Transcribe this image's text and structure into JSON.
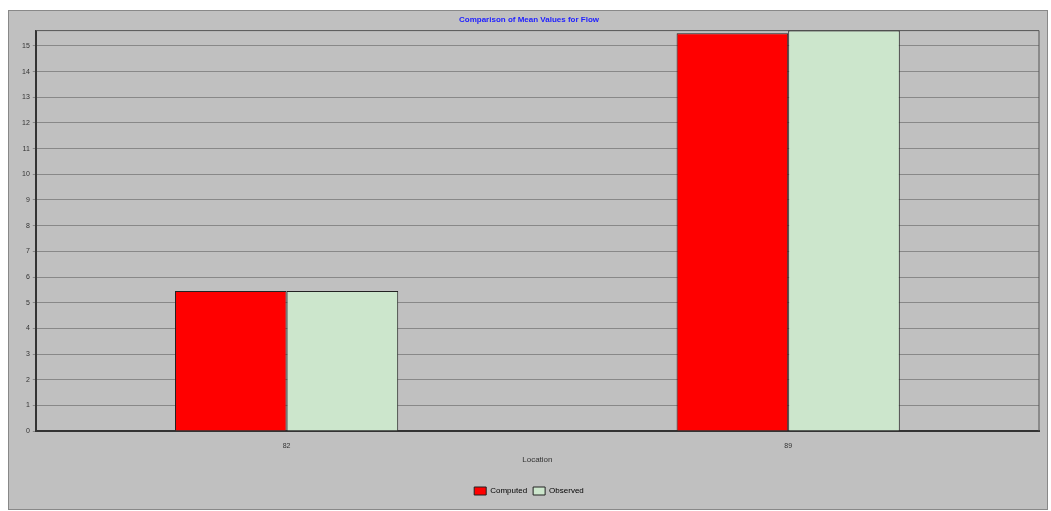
{
  "chart_data": {
    "type": "bar",
    "title": "Comparison of Mean Values for Flow",
    "xlabel": "Location",
    "categories": [
      "82",
      "89"
    ],
    "series": [
      {
        "name": "Computed",
        "color": "#ff0000",
        "values": [
          5.45,
          15.5
        ]
      },
      {
        "name": "Observed",
        "color": "#cce6cc",
        "values": [
          5.45,
          15.6
        ]
      }
    ],
    "ylim": [
      0,
      15.6
    ],
    "yticks": [
      0,
      1,
      2,
      3,
      4,
      5,
      6,
      7,
      8,
      9,
      10,
      11,
      12,
      13,
      14,
      15
    ],
    "grid": "y",
    "legend": "bottom"
  }
}
